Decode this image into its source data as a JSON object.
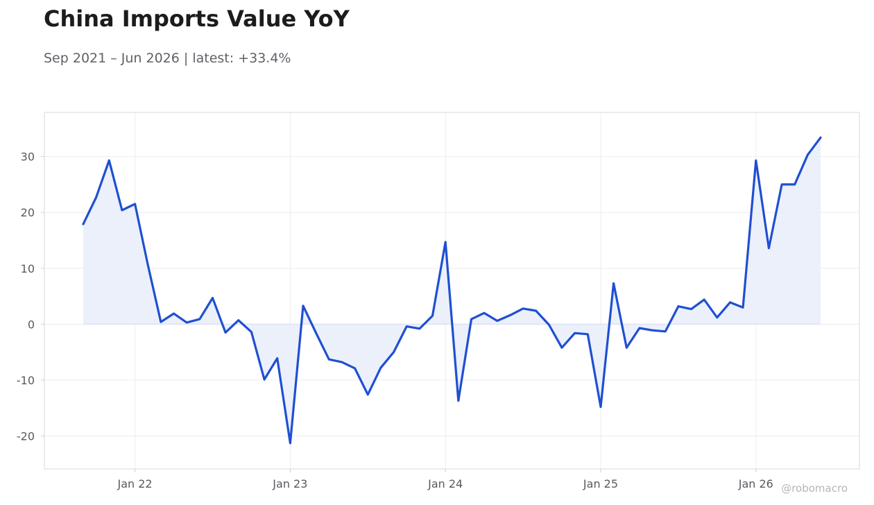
{
  "header": {
    "title": "China Imports Value YoY",
    "subtitle": "Sep 2021 – Jun 2026 | latest: +33.4%"
  },
  "watermark": "@robomacro",
  "colors": {
    "line": "#1f4fd1",
    "fill": "#eaeffb",
    "grid": "#ececec",
    "frame": "#d9d9d9"
  },
  "chart_data": {
    "type": "area",
    "x": [
      "2021-09",
      "2021-10",
      "2021-11",
      "2021-12",
      "2022-01",
      "2022-02",
      "2022-03",
      "2022-04",
      "2022-05",
      "2022-06",
      "2022-07",
      "2022-08",
      "2022-09",
      "2022-10",
      "2022-11",
      "2022-12",
      "2023-01",
      "2023-02",
      "2023-03",
      "2023-04",
      "2023-05",
      "2023-06",
      "2023-07",
      "2023-08",
      "2023-09",
      "2023-10",
      "2023-11",
      "2023-12",
      "2024-01",
      "2024-02",
      "2024-03",
      "2024-04",
      "2024-05",
      "2024-06",
      "2024-07",
      "2024-08",
      "2024-09",
      "2024-10",
      "2024-11",
      "2024-12",
      "2025-01",
      "2025-02",
      "2025-03",
      "2025-04",
      "2025-05",
      "2025-06",
      "2025-07",
      "2025-08",
      "2025-09",
      "2025-10",
      "2025-11",
      "2025-12",
      "2026-01",
      "2026-02",
      "2026-03",
      "2026-04",
      "2026-05",
      "2026-06"
    ],
    "series": [
      {
        "values": [
          17.9,
          22.7,
          29.3,
          20.4,
          21.5,
          10.6,
          0.4,
          1.9,
          0.3,
          0.9,
          4.7,
          -1.5,
          0.7,
          -1.4,
          -9.9,
          -6.1,
          -21.3,
          3.3,
          -1.6,
          -6.3,
          -6.8,
          -7.9,
          -12.6,
          -7.8,
          -5.0,
          -0.4,
          -0.8,
          1.5,
          14.7,
          -13.7,
          0.9,
          2.0,
          0.6,
          1.6,
          2.8,
          2.4,
          -0.1,
          -4.2,
          -1.6,
          -1.8,
          -14.8,
          7.3,
          -4.2,
          -0.7,
          -1.1,
          -1.3,
          3.2,
          2.7,
          4.4,
          1.2,
          3.9,
          3.0,
          29.3,
          13.6,
          25.0,
          25.0,
          30.3,
          33.4
        ]
      }
    ],
    "x_ticks": [
      "Jan 22",
      "Jan 23",
      "Jan 24",
      "Jan 25",
      "Jan 26"
    ],
    "x_tick_dates": [
      "2022-01",
      "2023-01",
      "2024-01",
      "2025-01",
      "2026-01"
    ],
    "y_ticks": [
      30,
      20,
      10,
      0,
      -10,
      -20
    ],
    "y_tick_labels": [
      "30",
      "20",
      "10",
      "0",
      "-10",
      "-20"
    ],
    "xlim": [
      "2021-06",
      "2026-09"
    ],
    "ylim": [
      -25.9,
      37.9
    ],
    "grid": true,
    "legend": "none"
  }
}
